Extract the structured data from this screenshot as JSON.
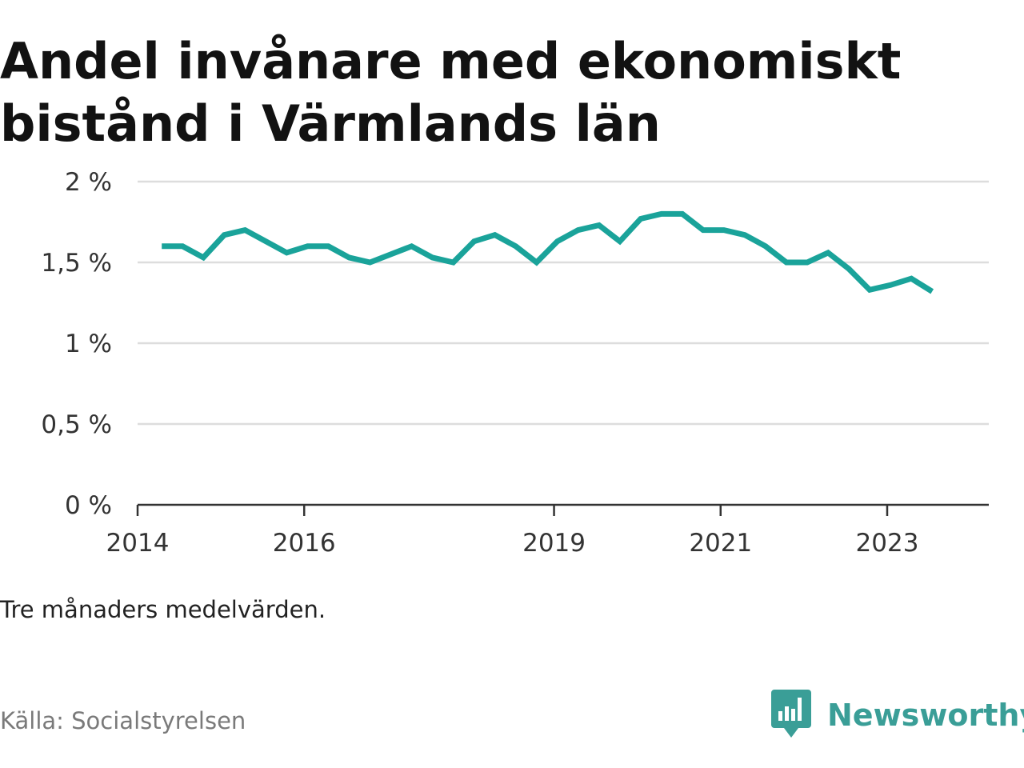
{
  "title": "Andel invånare med ekonomiskt bistånd i Värmlands län",
  "note": "Tre månaders medelvärden.",
  "source": "Källa: Socialstyrelsen",
  "brand": {
    "name": "Newsworthy",
    "icon": "newsworthy-logo-icon",
    "color": "#3a9e97"
  },
  "colors": {
    "line": "#1aa39a",
    "grid": "#dddddd",
    "axis": "#333333"
  },
  "chart_data": {
    "type": "line",
    "title": "Andel invånare med ekonomiskt bistånd i Värmlands län",
    "xlabel": "",
    "ylabel": "",
    "x_ticks": [
      "2014",
      "2016",
      "2019",
      "2021",
      "2023"
    ],
    "y_ticks": [
      "0 %",
      "0,5 %",
      "1 %",
      "1,5 %",
      "2 %"
    ],
    "ylim": [
      0,
      2
    ],
    "xlim": [
      2014.0,
      2024.22
    ],
    "grid": true,
    "legend": "none",
    "series": [
      {
        "values": [
          {
            "x": 2014.29,
            "y": 1.6
          },
          {
            "x": 2014.54,
            "y": 1.6
          },
          {
            "x": 2014.79,
            "y": 1.53
          },
          {
            "x": 2015.04,
            "y": 1.67
          },
          {
            "x": 2015.29,
            "y": 1.7
          },
          {
            "x": 2015.54,
            "y": 1.63
          },
          {
            "x": 2015.79,
            "y": 1.56
          },
          {
            "x": 2016.04,
            "y": 1.6
          },
          {
            "x": 2016.29,
            "y": 1.6
          },
          {
            "x": 2016.54,
            "y": 1.53
          },
          {
            "x": 2016.79,
            "y": 1.5
          },
          {
            "x": 2017.04,
            "y": 1.55
          },
          {
            "x": 2017.29,
            "y": 1.6
          },
          {
            "x": 2017.54,
            "y": 1.53
          },
          {
            "x": 2017.79,
            "y": 1.5
          },
          {
            "x": 2018.04,
            "y": 1.63
          },
          {
            "x": 2018.29,
            "y": 1.67
          },
          {
            "x": 2018.54,
            "y": 1.6
          },
          {
            "x": 2018.79,
            "y": 1.5
          },
          {
            "x": 2019.04,
            "y": 1.63
          },
          {
            "x": 2019.29,
            "y": 1.7
          },
          {
            "x": 2019.54,
            "y": 1.73
          },
          {
            "x": 2019.79,
            "y": 1.63
          },
          {
            "x": 2020.04,
            "y": 1.77
          },
          {
            "x": 2020.29,
            "y": 1.8
          },
          {
            "x": 2020.54,
            "y": 1.8
          },
          {
            "x": 2020.79,
            "y": 1.7
          },
          {
            "x": 2021.04,
            "y": 1.7
          },
          {
            "x": 2021.29,
            "y": 1.67
          },
          {
            "x": 2021.54,
            "y": 1.6
          },
          {
            "x": 2021.79,
            "y": 1.5
          },
          {
            "x": 2022.04,
            "y": 1.5
          },
          {
            "x": 2022.29,
            "y": 1.56
          },
          {
            "x": 2022.54,
            "y": 1.46
          },
          {
            "x": 2022.79,
            "y": 1.33
          },
          {
            "x": 2023.04,
            "y": 1.36
          },
          {
            "x": 2023.29,
            "y": 1.4
          },
          {
            "x": 2023.54,
            "y": 1.32
          }
        ]
      }
    ]
  }
}
